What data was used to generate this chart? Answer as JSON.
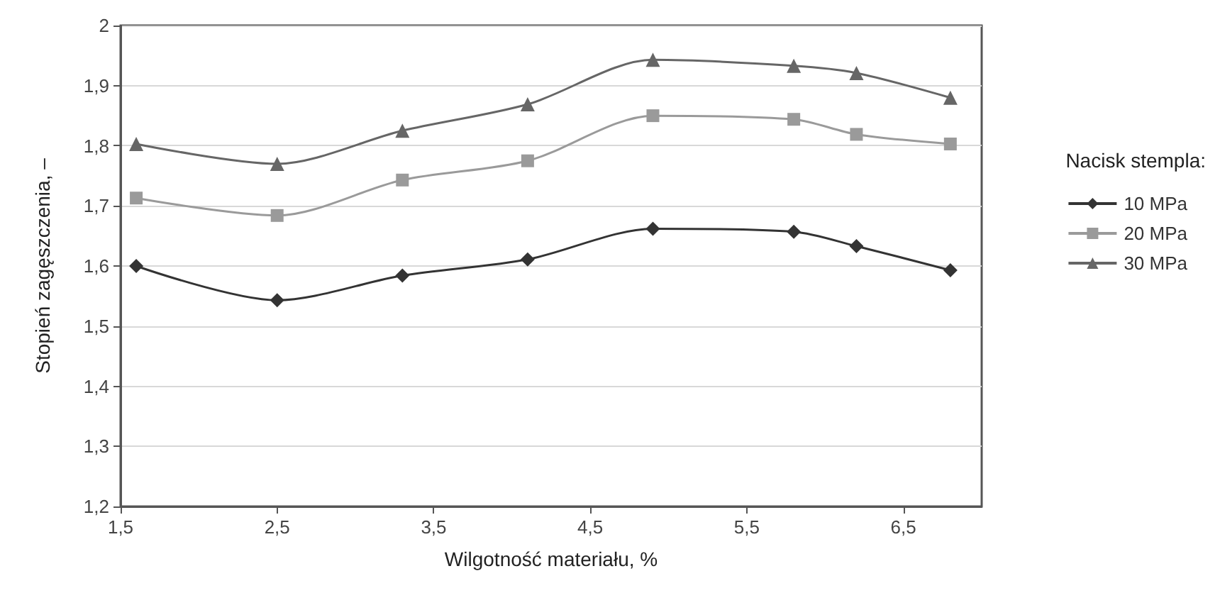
{
  "chart_data": {
    "type": "line",
    "xlabel": "Wilgotność materiału, %",
    "ylabel": "Stopień zagęszczenia, –",
    "legend_title": "Nacisk stempla:",
    "x": [
      1.6,
      2.5,
      3.3,
      4.1,
      4.9,
      5.8,
      6.2,
      6.8
    ],
    "series": [
      {
        "name": "10 MPa",
        "color": "#333333",
        "marker": "diamond",
        "values": [
          1.6,
          1.543,
          1.584,
          1.611,
          1.662,
          1.657,
          1.633,
          1.593
        ]
      },
      {
        "name": "20 MPa",
        "color": "#9a9a9a",
        "marker": "square",
        "values": [
          1.713,
          1.684,
          1.743,
          1.775,
          1.85,
          1.844,
          1.819,
          1.803
        ]
      },
      {
        "name": "30 MPa",
        "color": "#666666",
        "marker": "triangle",
        "values": [
          1.803,
          1.77,
          1.825,
          1.869,
          1.943,
          1.933,
          1.921,
          1.88
        ]
      }
    ],
    "xlim": [
      1.5,
      7
    ],
    "xticks": [
      {
        "value": 1.5,
        "label": "1,5"
      },
      {
        "value": 2.5,
        "label": "2,5"
      },
      {
        "value": 3.5,
        "label": "3,5"
      },
      {
        "value": 4.5,
        "label": "4,5"
      },
      {
        "value": 5.5,
        "label": "5,5"
      },
      {
        "value": 6.5,
        "label": "6,5"
      }
    ],
    "ylim": [
      1.2,
      2
    ],
    "yticks": [
      {
        "value": 1.2,
        "label": "1,2"
      },
      {
        "value": 1.3,
        "label": "1,3"
      },
      {
        "value": 1.4,
        "label": "1,4"
      },
      {
        "value": 1.5,
        "label": "1,5"
      },
      {
        "value": 1.6,
        "label": "1,6"
      },
      {
        "value": 1.7,
        "label": "1,7"
      },
      {
        "value": 1.8,
        "label": "1,8"
      },
      {
        "value": 1.9,
        "label": "1,9"
      },
      2
    ],
    "grid": "y",
    "legend": "right",
    "line_style": "solid"
  }
}
